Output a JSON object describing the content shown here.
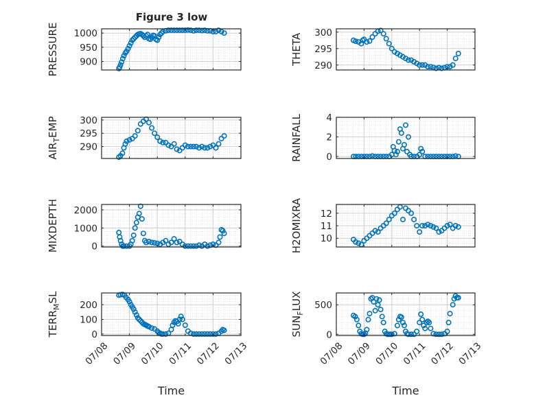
{
  "figure": {
    "title": "Figure 3 low",
    "xlabel": "Time"
  },
  "colors": {
    "marker": "#0072BD",
    "axes": "#262626",
    "grid": "#d9d9d9"
  },
  "chart_data": [
    {
      "type": "scatter",
      "title": "Figure 3 low",
      "ylabel": "PRESSURE",
      "ylabel_sub": "",
      "xlabel": "",
      "ylim": [
        870,
        1015
      ],
      "yticks": [
        900,
        950,
        1000
      ],
      "ytick_labels": [
        "900",
        "950",
        "1000"
      ],
      "xlim": [
        0,
        5
      ],
      "xticks": [
        0,
        1,
        2,
        3,
        4,
        5
      ],
      "xtick_labels": [],
      "grid": true,
      "minor_grid": true,
      "x": [
        0.62,
        0.65,
        0.68,
        0.72,
        0.76,
        0.8,
        0.85,
        0.9,
        0.95,
        1.0,
        1.05,
        1.1,
        1.15,
        1.2,
        1.25,
        1.3,
        1.35,
        1.4,
        1.45,
        1.5,
        1.55,
        1.6,
        1.65,
        1.7,
        1.75,
        1.8,
        1.85,
        1.9,
        1.95,
        2.0,
        2.05,
        2.1,
        2.15,
        2.2,
        2.3,
        2.4,
        2.5,
        2.6,
        2.7,
        2.8,
        2.9,
        3.0,
        3.1,
        3.2,
        3.3,
        3.4,
        3.5,
        3.6,
        3.7,
        3.8,
        3.9,
        4.0,
        4.1,
        4.2,
        4.3,
        4.4
      ],
      "y": [
        875,
        880,
        888,
        898,
        910,
        920,
        930,
        936,
        945,
        955,
        965,
        975,
        980,
        985,
        990,
        995,
        997,
        998,
        995,
        990,
        985,
        990,
        995,
        980,
        978,
        985,
        992,
        990,
        978,
        975,
        985,
        995,
        1000,
        1005,
        1008,
        1010,
        1010,
        1010,
        1010,
        1010,
        1010,
        1010,
        1011,
        1010,
        1008,
        1010,
        1010,
        1009,
        1010,
        1008,
        1008,
        1005,
        1005,
        1010,
        1005,
        1000
      ]
    },
    {
      "type": "scatter",
      "title": "",
      "ylabel": "THETA",
      "ylabel_sub": "",
      "xlabel": "",
      "ylim": [
        288.5,
        301
      ],
      "yticks": [
        290,
        295,
        300
      ],
      "ytick_labels": [
        "290",
        "295",
        "300"
      ],
      "xlim": [
        0,
        5
      ],
      "xticks": [
        0,
        1,
        2,
        3,
        4,
        5
      ],
      "xtick_labels": [],
      "grid": true,
      "minor_grid": true,
      "x": [
        0.62,
        0.7,
        0.8,
        0.9,
        0.95,
        1.0,
        1.1,
        1.2,
        1.3,
        1.4,
        1.5,
        1.6,
        1.7,
        1.8,
        1.9,
        2.0,
        2.1,
        2.2,
        2.3,
        2.4,
        2.5,
        2.6,
        2.7,
        2.8,
        2.9,
        3.0,
        3.1,
        3.2,
        3.3,
        3.4,
        3.5,
        3.6,
        3.7,
        3.8,
        3.9,
        4.0,
        4.1,
        4.2,
        4.3,
        4.4
      ],
      "y": [
        297.5,
        297.2,
        297.0,
        296.5,
        297.5,
        297.8,
        297.0,
        297.3,
        298.5,
        299.5,
        300.3,
        300.5,
        299.5,
        298.0,
        296.5,
        295.0,
        294.0,
        293.5,
        293.0,
        292.5,
        292.0,
        291.5,
        291.5,
        291.0,
        290.5,
        290.0,
        290.0,
        290.0,
        289.5,
        289.5,
        289.3,
        289.0,
        289.2,
        289.0,
        289.2,
        289.5,
        289.5,
        290.0,
        292.0,
        293.5
      ]
    },
    {
      "type": "scatter",
      "title": "",
      "ylabel": "AIR",
      "ylabel_sub": "T",
      "ylabel_tail": "EMP",
      "xlabel": "",
      "ylim": [
        285.5,
        301
      ],
      "yticks": [
        290,
        295,
        300
      ],
      "ytick_labels": [
        "290",
        "295",
        "300"
      ],
      "xlim": [
        0,
        5
      ],
      "xticks": [
        0,
        1,
        2,
        3,
        4,
        5
      ],
      "xtick_labels": [],
      "grid": true,
      "minor_grid": true,
      "x": [
        0.62,
        0.68,
        0.75,
        0.8,
        0.85,
        0.9,
        1.0,
        1.1,
        1.2,
        1.3,
        1.4,
        1.5,
        1.6,
        1.7,
        1.8,
        1.9,
        2.0,
        2.1,
        2.2,
        2.3,
        2.4,
        2.5,
        2.6,
        2.7,
        2.8,
        2.9,
        3.0,
        3.1,
        3.2,
        3.3,
        3.4,
        3.5,
        3.6,
        3.7,
        3.8,
        3.9,
        4.0,
        4.1,
        4.2,
        4.3,
        4.4
      ],
      "y": [
        286.0,
        286.5,
        287.5,
        289.5,
        291.0,
        292.0,
        292.5,
        293.0,
        294.0,
        296.0,
        298.5,
        299.5,
        300.3,
        299.0,
        297.0,
        295.0,
        293.5,
        292.0,
        291.5,
        291.5,
        290.5,
        290.0,
        291.0,
        289.0,
        288.5,
        289.5,
        290.5,
        290.0,
        290.0,
        290.0,
        290.0,
        289.5,
        290.0,
        289.5,
        289.5,
        290.0,
        290.5,
        289.5,
        291.0,
        293.0,
        294.0
      ]
    },
    {
      "type": "scatter",
      "title": "",
      "ylabel": "RAINFALL",
      "ylabel_sub": "",
      "xlabel": "",
      "ylim": [
        -0.2,
        4
      ],
      "yticks": [
        0,
        2,
        4
      ],
      "ytick_labels": [
        "0",
        "2",
        "4"
      ],
      "xlim": [
        0,
        5
      ],
      "xticks": [
        0,
        1,
        2,
        3,
        4,
        5
      ],
      "xtick_labels": [],
      "grid": true,
      "minor_grid": true,
      "x": [
        0.62,
        0.7,
        0.8,
        0.9,
        1.0,
        1.1,
        1.2,
        1.3,
        1.4,
        1.5,
        1.6,
        1.7,
        1.8,
        1.9,
        2.0,
        2.05,
        2.1,
        2.15,
        2.2,
        2.25,
        2.3,
        2.35,
        2.4,
        2.45,
        2.5,
        2.55,
        2.6,
        2.65,
        2.7,
        2.8,
        2.9,
        3.0,
        3.05,
        3.1,
        3.2,
        3.3,
        3.4,
        3.5,
        3.6,
        3.7,
        3.8,
        3.9,
        4.0,
        4.1,
        4.2,
        4.3,
        4.4
      ],
      "y": [
        0,
        0,
        0,
        0,
        0,
        0,
        0,
        0.05,
        0,
        0,
        0,
        0,
        0,
        0,
        0.2,
        1.0,
        0.6,
        0.2,
        0.5,
        1.5,
        2.8,
        2.4,
        0.8,
        1.2,
        3.2,
        0.5,
        2.0,
        0.2,
        0,
        0,
        0,
        0.2,
        0.8,
        0.5,
        0,
        0,
        0,
        0,
        0,
        0,
        0,
        0,
        0,
        0,
        0,
        0.05,
        0
      ]
    },
    {
      "type": "scatter",
      "title": "",
      "ylabel": "MIXDEPTH",
      "ylabel_sub": "",
      "xlabel": "",
      "ylim": [
        -50,
        2300
      ],
      "yticks": [
        0,
        1000,
        2000
      ],
      "ytick_labels": [
        "0",
        "1000",
        "2000"
      ],
      "xlim": [
        0,
        5
      ],
      "xticks": [
        0,
        1,
        2,
        3,
        4,
        5
      ],
      "xtick_labels": [],
      "grid": true,
      "minor_grid": true,
      "x": [
        0.62,
        0.65,
        0.68,
        0.72,
        0.76,
        0.8,
        0.9,
        1.0,
        1.05,
        1.1,
        1.15,
        1.2,
        1.25,
        1.3,
        1.35,
        1.4,
        1.45,
        1.5,
        1.55,
        1.6,
        1.7,
        1.8,
        1.9,
        2.0,
        2.1,
        2.2,
        2.3,
        2.4,
        2.5,
        2.6,
        2.7,
        2.8,
        2.9,
        3.0,
        3.1,
        3.2,
        3.3,
        3.4,
        3.5,
        3.6,
        3.7,
        3.8,
        3.9,
        4.0,
        4.1,
        4.2,
        4.25,
        4.3,
        4.35,
        4.4
      ],
      "y": [
        750,
        500,
        300,
        100,
        0,
        0,
        0,
        0,
        100,
        300,
        600,
        1000,
        1300,
        1600,
        1800,
        2200,
        1500,
        700,
        300,
        200,
        250,
        200,
        180,
        150,
        100,
        200,
        300,
        100,
        200,
        400,
        200,
        250,
        100,
        0,
        0,
        0,
        0,
        0,
        50,
        0,
        100,
        0,
        50,
        100,
        50,
        200,
        500,
        900,
        850,
        700
      ]
    },
    {
      "type": "scatter",
      "title": "",
      "ylabel": "H2OMIXRA",
      "ylabel_sub": "",
      "xlabel": "",
      "ylim": [
        9.3,
        12.7
      ],
      "yticks": [
        10,
        11,
        12
      ],
      "ytick_labels": [
        "10",
        "11",
        "12"
      ],
      "xlim": [
        0,
        5
      ],
      "xticks": [
        0,
        1,
        2,
        3,
        4,
        5
      ],
      "xtick_labels": [],
      "grid": true,
      "minor_grid": true,
      "x": [
        0.62,
        0.7,
        0.8,
        0.9,
        1.0,
        1.1,
        1.2,
        1.3,
        1.4,
        1.5,
        1.6,
        1.7,
        1.8,
        1.9,
        2.0,
        2.1,
        2.2,
        2.3,
        2.4,
        2.5,
        2.6,
        2.7,
        2.8,
        2.9,
        3.0,
        3.1,
        3.2,
        3.3,
        3.4,
        3.5,
        3.6,
        3.7,
        3.8,
        3.9,
        4.0,
        4.1,
        4.2,
        4.3,
        4.4
      ],
      "y": [
        9.9,
        9.7,
        9.6,
        9.5,
        9.8,
        10.0,
        10.2,
        10.4,
        10.6,
        10.5,
        10.8,
        11.0,
        11.2,
        11.5,
        11.8,
        12.0,
        12.3,
        12.5,
        11.5,
        12.4,
        12.2,
        12.0,
        11.5,
        11.0,
        10.5,
        11.0,
        11.0,
        11.1,
        11.0,
        10.9,
        10.8,
        10.5,
        10.6,
        10.8,
        11.0,
        11.1,
        10.8,
        11.0,
        10.9
      ]
    },
    {
      "type": "scatter",
      "title": "",
      "ylabel": "TERR",
      "ylabel_sub": "M",
      "ylabel_tail": "SL",
      "xlabel": "Time",
      "ylim": [
        -10,
        280
      ],
      "yticks": [
        0,
        100,
        200
      ],
      "ytick_labels": [
        "0",
        "100",
        "200"
      ],
      "xlim": [
        0,
        5
      ],
      "xticks": [
        0,
        1,
        2,
        3,
        4,
        5
      ],
      "xtick_labels": [
        "07/08",
        "07/09",
        "07/10",
        "07/11",
        "07/12",
        "07/13"
      ],
      "grid": true,
      "minor_grid": true,
      "x": [
        0.62,
        0.68,
        0.75,
        0.82,
        0.88,
        0.95,
        1.0,
        1.05,
        1.1,
        1.15,
        1.2,
        1.25,
        1.3,
        1.35,
        1.4,
        1.45,
        1.5,
        1.55,
        1.6,
        1.65,
        1.7,
        1.8,
        1.9,
        2.0,
        2.05,
        2.1,
        2.15,
        2.2,
        2.3,
        2.4,
        2.5,
        2.55,
        2.6,
        2.65,
        2.7,
        2.75,
        2.8,
        2.85,
        2.9,
        3.0,
        3.1,
        3.2,
        3.3,
        3.4,
        3.5,
        3.6,
        3.7,
        3.8,
        3.9,
        4.0,
        4.1,
        4.2,
        4.3,
        4.35,
        4.4
      ],
      "y": [
        265,
        268,
        270,
        265,
        250,
        235,
        220,
        200,
        185,
        170,
        150,
        130,
        110,
        100,
        90,
        80,
        70,
        65,
        60,
        55,
        50,
        40,
        35,
        20,
        10,
        5,
        0,
        0,
        0,
        5,
        30,
        60,
        80,
        90,
        85,
        70,
        100,
        120,
        100,
        60,
        20,
        5,
        0,
        0,
        0,
        0,
        0,
        0,
        0,
        0,
        0,
        5,
        20,
        30,
        25
      ]
    },
    {
      "type": "scatter",
      "title": "",
      "ylabel": "SUN",
      "ylabel_sub": "F",
      "ylabel_tail": "LUX",
      "xlabel": "Time",
      "ylim": [
        -20,
        700
      ],
      "yticks": [
        0,
        500
      ],
      "ytick_labels": [
        "0",
        "500"
      ],
      "xlim": [
        0,
        5
      ],
      "xticks": [
        0,
        1,
        2,
        3,
        4,
        5
      ],
      "xtick_labels": [
        "07/08",
        "07/09",
        "07/10",
        "07/11",
        "07/12",
        "07/13"
      ],
      "grid": true,
      "minor_grid": true,
      "x": [
        0.62,
        0.68,
        0.74,
        0.8,
        0.85,
        0.9,
        0.95,
        1.0,
        1.05,
        1.1,
        1.15,
        1.2,
        1.25,
        1.3,
        1.35,
        1.4,
        1.45,
        1.5,
        1.55,
        1.6,
        1.65,
        1.7,
        1.75,
        1.8,
        1.85,
        1.9,
        1.95,
        2.0,
        2.1,
        2.2,
        2.25,
        2.3,
        2.35,
        2.4,
        2.45,
        2.5,
        2.55,
        2.6,
        2.7,
        2.8,
        2.9,
        3.0,
        3.05,
        3.1,
        3.15,
        3.2,
        3.25,
        3.3,
        3.35,
        3.4,
        3.5,
        3.6,
        3.7,
        3.8,
        3.9,
        4.0,
        4.05,
        4.1,
        4.2,
        4.25,
        4.3,
        4.35,
        4.4
      ],
      "y": [
        320,
        300,
        250,
        150,
        50,
        10,
        0,
        0,
        20,
        80,
        250,
        350,
        600,
        620,
        550,
        400,
        600,
        500,
        580,
        420,
        300,
        200,
        50,
        10,
        0,
        0,
        0,
        0,
        10,
        150,
        250,
        300,
        290,
        200,
        150,
        50,
        10,
        0,
        0,
        0,
        50,
        200,
        340,
        250,
        150,
        100,
        200,
        220,
        200,
        100,
        10,
        0,
        0,
        0,
        10,
        50,
        200,
        350,
        500,
        600,
        650,
        620,
        620
      ]
    }
  ]
}
